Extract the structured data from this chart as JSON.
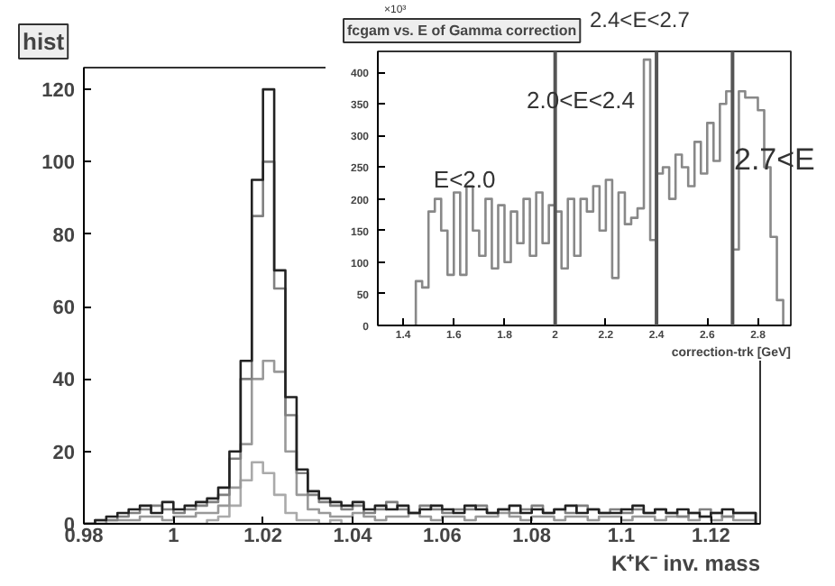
{
  "chart_data": [
    {
      "type": "histogram",
      "title": "hist",
      "xlabel": "K⁺K⁻ inv. mass",
      "xlim": [
        0.98,
        1.131
      ],
      "ylim": [
        0,
        126
      ],
      "xticks": [
        0.98,
        1,
        1.02,
        1.04,
        1.06,
        1.08,
        1.1,
        1.12
      ],
      "yticks": [
        0,
        20,
        40,
        60,
        80,
        100,
        120
      ],
      "bins": [
        0.98,
        0.9825,
        0.985,
        0.9875,
        0.99,
        0.9925,
        0.995,
        0.9975,
        1.0,
        1.0025,
        1.005,
        1.0075,
        1.01,
        1.0125,
        1.015,
        1.0175,
        1.02,
        1.0225,
        1.025,
        1.0275,
        1.03,
        1.0325,
        1.035,
        1.0375,
        1.04,
        1.0425,
        1.045,
        1.0475,
        1.05,
        1.0525,
        1.055,
        1.0575,
        1.06,
        1.0625,
        1.065,
        1.0675,
        1.07,
        1.0725,
        1.075,
        1.0775,
        1.08,
        1.0825,
        1.085,
        1.0875,
        1.09,
        1.0925,
        1.095,
        1.0975,
        1.1,
        1.1025,
        1.105,
        1.1075,
        1.11,
        1.1125,
        1.115,
        1.1175,
        1.12,
        1.1225,
        1.125,
        1.1275,
        1.13
      ],
      "series": [
        {
          "color": "#aaaaaa",
          "values": [
            0,
            0,
            0,
            0,
            0,
            0,
            0,
            0,
            0,
            0,
            0,
            1,
            2,
            5,
            12,
            17,
            14,
            8,
            3,
            1,
            1,
            0,
            1,
            0,
            0,
            0,
            0,
            0,
            0,
            0,
            0,
            0,
            0,
            0,
            0,
            0,
            0,
            0,
            0,
            0,
            0,
            0,
            0,
            0,
            0,
            0,
            0,
            0,
            0,
            0,
            0,
            0,
            0,
            0,
            0,
            0,
            0,
            0,
            0,
            0
          ]
        },
        {
          "color": "#999999",
          "values": [
            0,
            0,
            1,
            1,
            1,
            2,
            2,
            1,
            2,
            2,
            3,
            3,
            5,
            10,
            22,
            40,
            45,
            42,
            20,
            8,
            4,
            3,
            2,
            2,
            3,
            2,
            1,
            2,
            2,
            3,
            2,
            1,
            2,
            2,
            1,
            2,
            2,
            3,
            2,
            1,
            2,
            2,
            1,
            2,
            2,
            1,
            2,
            2,
            1,
            2,
            2,
            1,
            2,
            2,
            1,
            2,
            1,
            2,
            1,
            1
          ]
        },
        {
          "color": "#808080",
          "values": [
            0,
            1,
            1,
            2,
            3,
            4,
            5,
            4,
            3,
            4,
            5,
            6,
            8,
            18,
            40,
            85,
            100,
            65,
            30,
            14,
            8,
            6,
            5,
            4,
            5,
            3,
            4,
            6,
            4,
            3,
            5,
            4,
            3,
            4,
            4,
            5,
            3,
            4,
            3,
            4,
            5,
            3,
            4,
            3,
            5,
            4,
            3,
            4,
            3,
            4,
            3,
            4,
            3,
            2,
            3,
            4,
            3,
            2,
            3,
            3
          ]
        },
        {
          "color": "#222222",
          "values": [
            0,
            1,
            2,
            3,
            4,
            5,
            3,
            6,
            4,
            5,
            6,
            7,
            10,
            20,
            45,
            95,
            120,
            70,
            35,
            15,
            9,
            7,
            6,
            5,
            6,
            4,
            5,
            4,
            5,
            3,
            4,
            5,
            4,
            3,
            5,
            4,
            3,
            4,
            5,
            3,
            4,
            3,
            4,
            5,
            3,
            4,
            3,
            3,
            4,
            5,
            3,
            4,
            3,
            4,
            3,
            2,
            3,
            4,
            3,
            3
          ]
        }
      ]
    },
    {
      "type": "histogram",
      "title": "fcgam vs. E of Gamma correction",
      "xlabel": "correction-trk [GeV]",
      "xlim": [
        1.3,
        2.93
      ],
      "ylim": [
        0,
        433
      ],
      "xticks": [
        1.4,
        1.6,
        1.8,
        2,
        2.2,
        2.4,
        2.6,
        2.8
      ],
      "yticks": [
        0,
        50,
        100,
        150,
        200,
        250,
        300,
        350,
        400
      ],
      "bins": [
        1.45,
        1.475,
        1.5,
        1.525,
        1.55,
        1.575,
        1.6,
        1.625,
        1.65,
        1.675,
        1.7,
        1.725,
        1.75,
        1.775,
        1.8,
        1.825,
        1.85,
        1.875,
        1.9,
        1.925,
        1.95,
        1.975,
        2.0,
        2.025,
        2.05,
        2.075,
        2.1,
        2.125,
        2.15,
        2.175,
        2.2,
        2.225,
        2.25,
        2.275,
        2.3,
        2.325,
        2.35,
        2.375,
        2.4,
        2.425,
        2.45,
        2.475,
        2.5,
        2.525,
        2.55,
        2.575,
        2.6,
        2.625,
        2.65,
        2.675,
        2.7,
        2.725,
        2.75,
        2.775,
        2.8,
        2.825,
        2.85,
        2.875,
        2.9
      ],
      "series": [
        {
          "color": "#888888",
          "values": [
            70,
            60,
            180,
            200,
            150,
            80,
            210,
            80,
            220,
            150,
            110,
            200,
            90,
            190,
            100,
            180,
            130,
            200,
            110,
            210,
            130,
            190,
            180,
            90,
            200,
            110,
            200,
            180,
            220,
            150,
            230,
            75,
            210,
            160,
            170,
            185,
            420,
            135,
            240,
            250,
            200,
            270,
            250,
            220,
            290,
            240,
            320,
            260,
            350,
            370,
            120,
            370,
            360,
            360,
            340,
            250,
            140,
            40
          ]
        }
      ],
      "ref_lines": [
        {
          "axis": "x",
          "value": 2.0,
          "color": "#555555"
        },
        {
          "axis": "x",
          "value": 2.4,
          "color": "#555555"
        },
        {
          "axis": "x",
          "value": 2.7,
          "color": "#555555"
        }
      ],
      "annotations": [
        {
          "text": "E<2.0",
          "x": 1.52,
          "y": 210
        },
        "2.0<E<2.4",
        "2.4<E<2.7",
        "2.7<E",
        "×10³"
      ]
    }
  ]
}
